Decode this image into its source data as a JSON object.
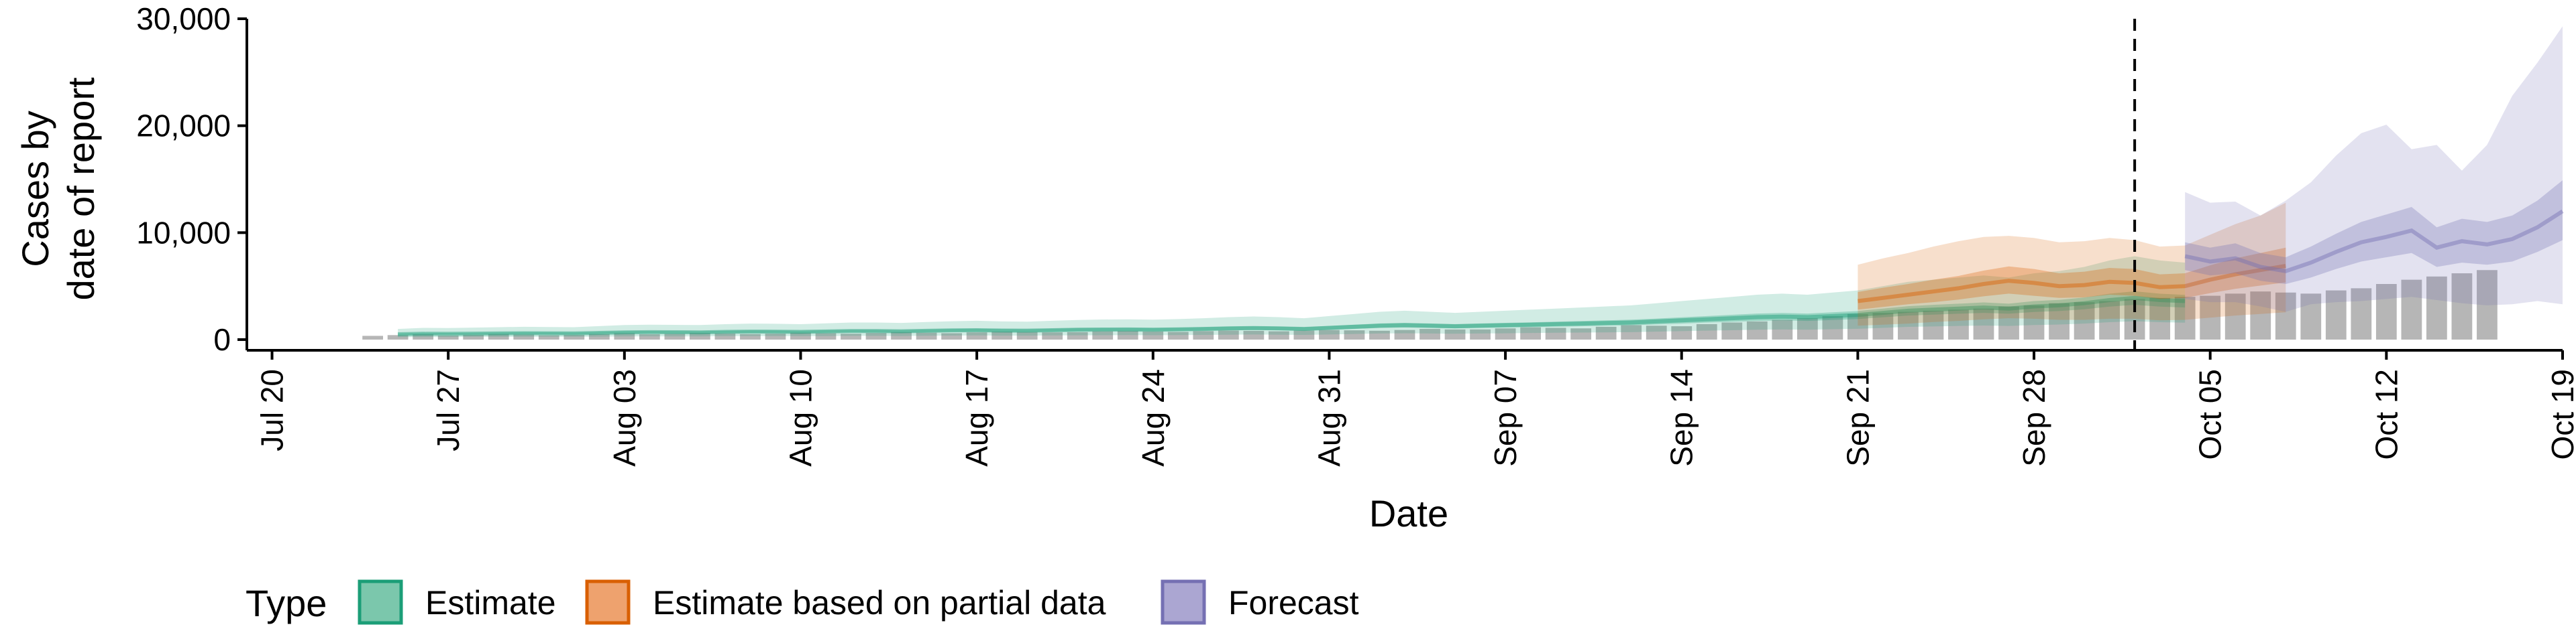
{
  "chart_data": {
    "type": "area",
    "title": "",
    "xlabel": "Date",
    "ylabel_lines": [
      "Cases by",
      "date of report"
    ],
    "x_start": "2020-07-20",
    "x_ticks": [
      "Jul 20",
      "Jul 27",
      "Aug 03",
      "Aug 10",
      "Aug 17",
      "Aug 24",
      "Aug 31",
      "Sep 07",
      "Sep 14",
      "Sep 21",
      "Sep 28",
      "Oct 05",
      "Oct 12",
      "Oct 19"
    ],
    "xlim": [
      "2020-07-19",
      "2020-10-19"
    ],
    "y_ticks": [
      "0",
      "10,000",
      "20,000",
      "30,000"
    ],
    "y_tick_values": [
      0,
      10000,
      20000,
      30000
    ],
    "ylim": [
      -1000,
      30000
    ],
    "grid": false,
    "cutoff_date": "2020-10-02",
    "legend": {
      "title": "Type",
      "position": "bottom",
      "entries": [
        {
          "label": "Estimate",
          "fill": "#7bc7ac",
          "stroke": "#1b9e77"
        },
        {
          "label": "Estimate based on partial data",
          "fill": "#eea26e",
          "stroke": "#d95f02"
        },
        {
          "label": "Forecast",
          "fill": "#aba6d2",
          "stroke": "#7570b3"
        }
      ]
    },
    "reported_cases": {
      "name": "",
      "color": "#a9a9a9",
      "values": [
        350,
        420,
        500,
        380,
        450,
        520,
        480,
        400,
        450,
        520,
        600,
        500,
        550,
        620,
        580,
        520,
        560,
        650,
        600,
        550,
        620,
        700,
        650,
        600,
        680,
        750,
        720,
        680,
        700,
        780,
        820,
        760,
        720,
        800,
        850,
        820,
        780,
        850,
        900,
        870,
        830,
        900,
        1000,
        950,
        950,
        1050,
        1150,
        1100,
        1050,
        1200,
        1350,
        1300,
        1250,
        1450,
        1600,
        1700,
        1850,
        2000,
        2200,
        2400,
        2500,
        2600,
        2700,
        2800,
        2900,
        3100,
        3200,
        3400,
        3500,
        3600,
        3800,
        3900,
        4000,
        4100,
        4300,
        4500,
        4400,
        4300,
        4600,
        4800,
        5200,
        5600,
        5900,
        6200,
        6500
      ]
    },
    "series": [
      {
        "name": "Estimate",
        "color": "#1b9e77",
        "start_day": 5,
        "median": [
          500,
          550,
          540,
          560,
          580,
          600,
          590,
          580,
          630,
          680,
          700,
          690,
          680,
          720,
          750,
          740,
          720,
          760,
          800,
          800,
          780,
          820,
          860,
          880,
          850,
          840,
          880,
          920,
          940,
          950,
          930,
          960,
          1000,
          1050,
          1080,
          1050,
          1000,
          1100,
          1200,
          1300,
          1350,
          1300,
          1250,
          1300,
          1350,
          1400,
          1450,
          1500,
          1550,
          1600,
          1700,
          1800,
          1900,
          2000,
          2100,
          2150,
          2100,
          2200,
          2300,
          2500,
          2700,
          2800,
          2900,
          3000,
          2900,
          3100,
          3200,
          3400,
          3700,
          3900,
          3700,
          3600
        ],
        "inner_low": [
          420,
          460,
          450,
          470,
          490,
          500,
          490,
          480,
          530,
          570,
          590,
          580,
          570,
          610,
          630,
          620,
          600,
          640,
          670,
          670,
          650,
          690,
          720,
          740,
          710,
          700,
          740,
          770,
          790,
          800,
          780,
          800,
          840,
          880,
          900,
          880,
          840,
          920,
          1000,
          1090,
          1130,
          1090,
          1050,
          1090,
          1130,
          1170,
          1210,
          1250,
          1300,
          1340,
          1420,
          1500,
          1590,
          1670,
          1750,
          1800,
          1750,
          1840,
          1920,
          2090,
          2250,
          2340,
          2420,
          2500,
          2420,
          2590,
          2670,
          2840,
          3090,
          3250,
          3090,
          3000
        ],
        "inner_high": [
          580,
          640,
          630,
          650,
          670,
          700,
          690,
          670,
          730,
          790,
          810,
          800,
          790,
          830,
          870,
          860,
          830,
          880,
          930,
          930,
          900,
          950,
          1000,
          1020,
          990,
          970,
          1020,
          1070,
          1090,
          1100,
          1080,
          1110,
          1160,
          1220,
          1250,
          1220,
          1160,
          1280,
          1390,
          1510,
          1570,
          1510,
          1450,
          1510,
          1570,
          1620,
          1680,
          1740,
          1800,
          1860,
          1970,
          2090,
          2200,
          2320,
          2440,
          2490,
          2440,
          2550,
          2670,
          2900,
          3130,
          3250,
          3360,
          3480,
          3360,
          3600,
          3710,
          3940,
          4290,
          4520,
          4290,
          4180
        ],
        "outer_low": [
          220,
          240,
          240,
          250,
          250,
          260,
          260,
          250,
          280,
          300,
          310,
          300,
          300,
          320,
          330,
          330,
          320,
          330,
          350,
          350,
          340,
          360,
          380,
          390,
          370,
          370,
          390,
          400,
          410,
          420,
          410,
          420,
          440,
          460,
          480,
          460,
          440,
          480,
          530,
          570,
          590,
          570,
          550,
          570,
          590,
          620,
          640,
          660,
          680,
          700,
          750,
          790,
          840,
          880,
          920,
          950,
          920,
          970,
          1010,
          1100,
          1190,
          1230,
          1280,
          1320,
          1280,
          1360,
          1410,
          1500,
          1630,
          1720,
          1630,
          1580
        ],
        "outer_high": [
          1000,
          1100,
          1080,
          1120,
          1160,
          1200,
          1180,
          1160,
          1260,
          1360,
          1400,
          1380,
          1360,
          1440,
          1500,
          1480,
          1440,
          1520,
          1600,
          1600,
          1560,
          1640,
          1720,
          1760,
          1700,
          1680,
          1760,
          1840,
          1880,
          1900,
          1860,
          1920,
          2000,
          2100,
          2160,
          2100,
          2000,
          2200,
          2400,
          2600,
          2700,
          2600,
          2500,
          2600,
          2700,
          2800,
          2900,
          3000,
          3100,
          3200,
          3400,
          3600,
          3800,
          4000,
          4200,
          4300,
          4200,
          4400,
          4600,
          5000,
          5400,
          5600,
          5800,
          6000,
          5800,
          6200,
          6400,
          6800,
          7400,
          7800,
          7400,
          7200
        ]
      },
      {
        "name": "Estimate based on partial data",
        "color": "#d95f02",
        "start_day": 63,
        "median": [
          3600,
          3900,
          4200,
          4500,
          4800,
          5200,
          5500,
          5300,
          5000,
          5100,
          5400,
          5300,
          4900,
          5000,
          5600,
          6100,
          6500,
          6900
        ],
        "inner_low": [
          2800,
          3050,
          3300,
          3500,
          3750,
          4050,
          4300,
          4100,
          3900,
          3950,
          4200,
          4100,
          3800,
          3900,
          4350,
          4750,
          5050,
          5350
        ],
        "inner_high": [
          4450,
          4850,
          5200,
          5600,
          5950,
          6450,
          6850,
          6600,
          6200,
          6350,
          6700,
          6600,
          6100,
          6200,
          6950,
          7600,
          8100,
          8600
        ],
        "outer_low": [
          1300,
          1400,
          1500,
          1650,
          1750,
          1900,
          2000,
          1950,
          1850,
          1850,
          1950,
          1950,
          1800,
          1850,
          2050,
          2250,
          2400,
          2550
        ],
        "outer_high": [
          7000,
          7600,
          8100,
          8700,
          9200,
          9600,
          9700,
          9500,
          9100,
          9200,
          9500,
          9300,
          8700,
          8800,
          9800,
          10800,
          11600,
          12800
        ]
      },
      {
        "name": "Forecast",
        "color": "#7570b3",
        "start_day": 76,
        "median": [
          7800,
          7300,
          7600,
          6800,
          6400,
          7200,
          8200,
          9100,
          9600,
          10200,
          8600,
          9200,
          8900,
          9400,
          10500,
          12000
        ],
        "inner_low": [
          6500,
          6000,
          6200,
          5500,
          5200,
          5800,
          6600,
          7300,
          7700,
          8100,
          6800,
          7200,
          7000,
          7300,
          8200,
          9300
        ],
        "inner_high": [
          9100,
          8600,
          9000,
          8100,
          7700,
          8700,
          9900,
          11000,
          11700,
          12400,
          10500,
          11300,
          11000,
          11600,
          13000,
          14900
        ],
        "outer_low": [
          3800,
          3500,
          3500,
          3100,
          2600,
          3300,
          3500,
          3600,
          3800,
          4000,
          3700,
          3400,
          3200,
          3300,
          3600,
          3300
        ],
        "outer_high": [
          13800,
          12800,
          12900,
          11600,
          13000,
          14700,
          17200,
          19300,
          20100,
          17800,
          18200,
          15800,
          18200,
          22800,
          25900,
          29300
        ]
      }
    ]
  }
}
